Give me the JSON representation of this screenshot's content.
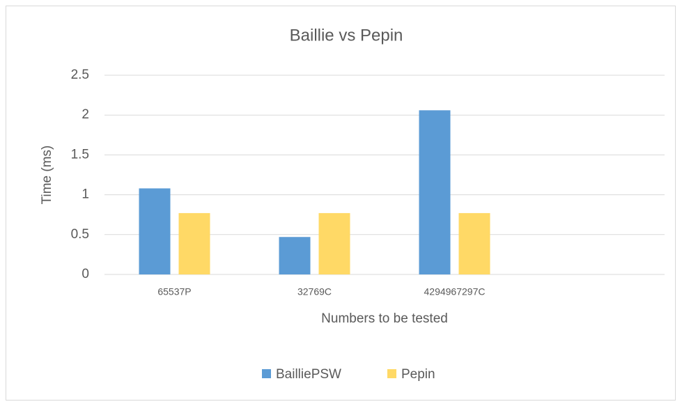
{
  "chart_data": {
    "type": "bar",
    "title": "Baillie vs Pepin",
    "x_label": "Numbers to be tested",
    "y_label": "Time (ms)",
    "categories": [
      "65537P",
      "32769C",
      "4294967297C",
      null
    ],
    "series": [
      {
        "name": "BailliePSW",
        "color": "#5b9bd5",
        "values": [
          1.08,
          0.47,
          2.06,
          null
        ]
      },
      {
        "name": "Pepin",
        "color": "#ffd966",
        "values": [
          0.77,
          0.77,
          0.77,
          null
        ]
      }
    ],
    "ylim": [
      0,
      2.5
    ],
    "yticks": [
      0,
      0.5,
      1,
      1.5,
      2,
      2.5
    ],
    "grid": true,
    "legend": "bottom"
  }
}
